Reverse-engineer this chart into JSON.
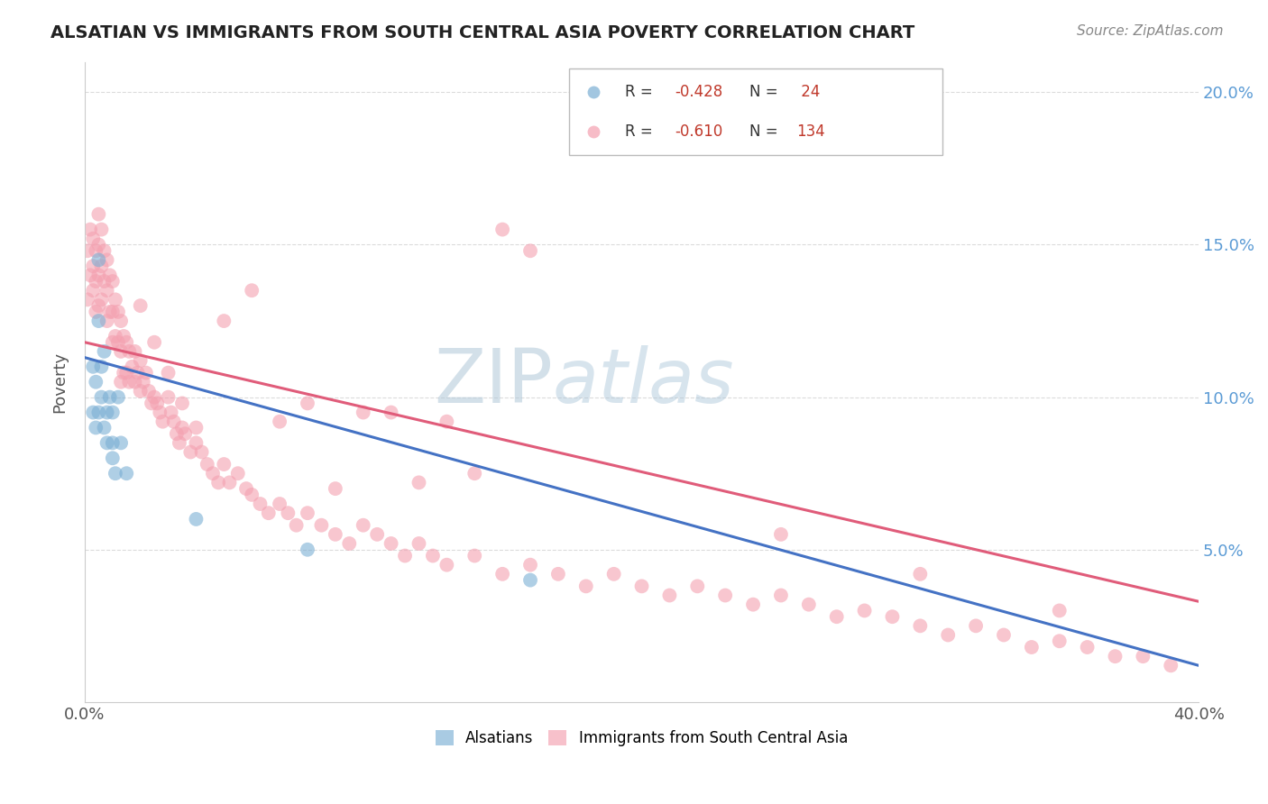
{
  "title": "ALSATIAN VS IMMIGRANTS FROM SOUTH CENTRAL ASIA POVERTY CORRELATION CHART",
  "source": "Source: ZipAtlas.com",
  "ylabel": "Poverty",
  "y_ticks": [
    0.05,
    0.1,
    0.15,
    0.2
  ],
  "y_tick_labels": [
    "5.0%",
    "10.0%",
    "15.0%",
    "20.0%"
  ],
  "xlim": [
    0.0,
    0.4
  ],
  "ylim": [
    0.0,
    0.21
  ],
  "series1_color": "#7bafd4",
  "series2_color": "#f4a0b0",
  "trendline1_color": "#4472c4",
  "trendline2_color": "#e05c7a",
  "background_color": "#ffffff",
  "watermark_color": "#c8dff0",
  "grid_color": "#cccccc",
  "alsatians_x": [
    0.003,
    0.003,
    0.004,
    0.004,
    0.005,
    0.005,
    0.005,
    0.006,
    0.006,
    0.007,
    0.007,
    0.008,
    0.008,
    0.009,
    0.01,
    0.01,
    0.01,
    0.011,
    0.012,
    0.013,
    0.015,
    0.04,
    0.08,
    0.16
  ],
  "alsatians_y": [
    0.11,
    0.095,
    0.105,
    0.09,
    0.145,
    0.125,
    0.095,
    0.11,
    0.1,
    0.115,
    0.09,
    0.095,
    0.085,
    0.1,
    0.08,
    0.095,
    0.085,
    0.075,
    0.1,
    0.085,
    0.075,
    0.06,
    0.05,
    0.04
  ],
  "immigrants_x": [
    0.001,
    0.001,
    0.002,
    0.002,
    0.003,
    0.003,
    0.003,
    0.004,
    0.004,
    0.004,
    0.005,
    0.005,
    0.005,
    0.005,
    0.006,
    0.006,
    0.006,
    0.007,
    0.007,
    0.008,
    0.008,
    0.008,
    0.009,
    0.009,
    0.01,
    0.01,
    0.01,
    0.011,
    0.011,
    0.012,
    0.012,
    0.013,
    0.013,
    0.013,
    0.014,
    0.014,
    0.015,
    0.015,
    0.016,
    0.016,
    0.017,
    0.018,
    0.018,
    0.019,
    0.02,
    0.02,
    0.021,
    0.022,
    0.023,
    0.024,
    0.025,
    0.026,
    0.027,
    0.028,
    0.03,
    0.031,
    0.032,
    0.033,
    0.034,
    0.035,
    0.036,
    0.038,
    0.04,
    0.042,
    0.044,
    0.046,
    0.048,
    0.05,
    0.052,
    0.055,
    0.058,
    0.06,
    0.063,
    0.066,
    0.07,
    0.073,
    0.076,
    0.08,
    0.085,
    0.09,
    0.095,
    0.1,
    0.105,
    0.11,
    0.115,
    0.12,
    0.125,
    0.13,
    0.14,
    0.15,
    0.16,
    0.17,
    0.18,
    0.19,
    0.2,
    0.21,
    0.22,
    0.23,
    0.24,
    0.25,
    0.26,
    0.27,
    0.28,
    0.29,
    0.3,
    0.31,
    0.32,
    0.33,
    0.34,
    0.35,
    0.36,
    0.37,
    0.38,
    0.39,
    0.02,
    0.025,
    0.03,
    0.035,
    0.04,
    0.15,
    0.16,
    0.05,
    0.06,
    0.07,
    0.08,
    0.09,
    0.1,
    0.11,
    0.12,
    0.13,
    0.14,
    0.25,
    0.3,
    0.35
  ],
  "immigrants_y": [
    0.148,
    0.132,
    0.155,
    0.14,
    0.152,
    0.143,
    0.135,
    0.148,
    0.138,
    0.128,
    0.16,
    0.15,
    0.14,
    0.13,
    0.155,
    0.143,
    0.132,
    0.148,
    0.138,
    0.145,
    0.135,
    0.125,
    0.14,
    0.128,
    0.138,
    0.128,
    0.118,
    0.132,
    0.12,
    0.128,
    0.118,
    0.125,
    0.115,
    0.105,
    0.12,
    0.108,
    0.118,
    0.108,
    0.115,
    0.105,
    0.11,
    0.115,
    0.105,
    0.108,
    0.112,
    0.102,
    0.105,
    0.108,
    0.102,
    0.098,
    0.1,
    0.098,
    0.095,
    0.092,
    0.1,
    0.095,
    0.092,
    0.088,
    0.085,
    0.09,
    0.088,
    0.082,
    0.085,
    0.082,
    0.078,
    0.075,
    0.072,
    0.078,
    0.072,
    0.075,
    0.07,
    0.068,
    0.065,
    0.062,
    0.065,
    0.062,
    0.058,
    0.062,
    0.058,
    0.055,
    0.052,
    0.058,
    0.055,
    0.052,
    0.048,
    0.052,
    0.048,
    0.045,
    0.048,
    0.042,
    0.045,
    0.042,
    0.038,
    0.042,
    0.038,
    0.035,
    0.038,
    0.035,
    0.032,
    0.035,
    0.032,
    0.028,
    0.03,
    0.028,
    0.025,
    0.022,
    0.025,
    0.022,
    0.018,
    0.02,
    0.018,
    0.015,
    0.015,
    0.012,
    0.13,
    0.118,
    0.108,
    0.098,
    0.09,
    0.155,
    0.148,
    0.125,
    0.135,
    0.092,
    0.098,
    0.07,
    0.095,
    0.095,
    0.072,
    0.092,
    0.075,
    0.055,
    0.042,
    0.03
  ],
  "trendline1_x0": 0.0,
  "trendline1_y0": 0.113,
  "trendline1_x1": 0.4,
  "trendline1_y1": 0.012,
  "trendline2_x0": 0.0,
  "trendline2_y0": 0.118,
  "trendline2_x1": 0.4,
  "trendline2_y1": 0.033,
  "legend_R1": "R = ",
  "legend_R1_val": "-0.428",
  "legend_N1": "N = ",
  "legend_N1_val": " 24",
  "legend_R2": "R = ",
  "legend_R2_val": "-0.610",
  "legend_N2": "N = ",
  "legend_N2_val": "134"
}
